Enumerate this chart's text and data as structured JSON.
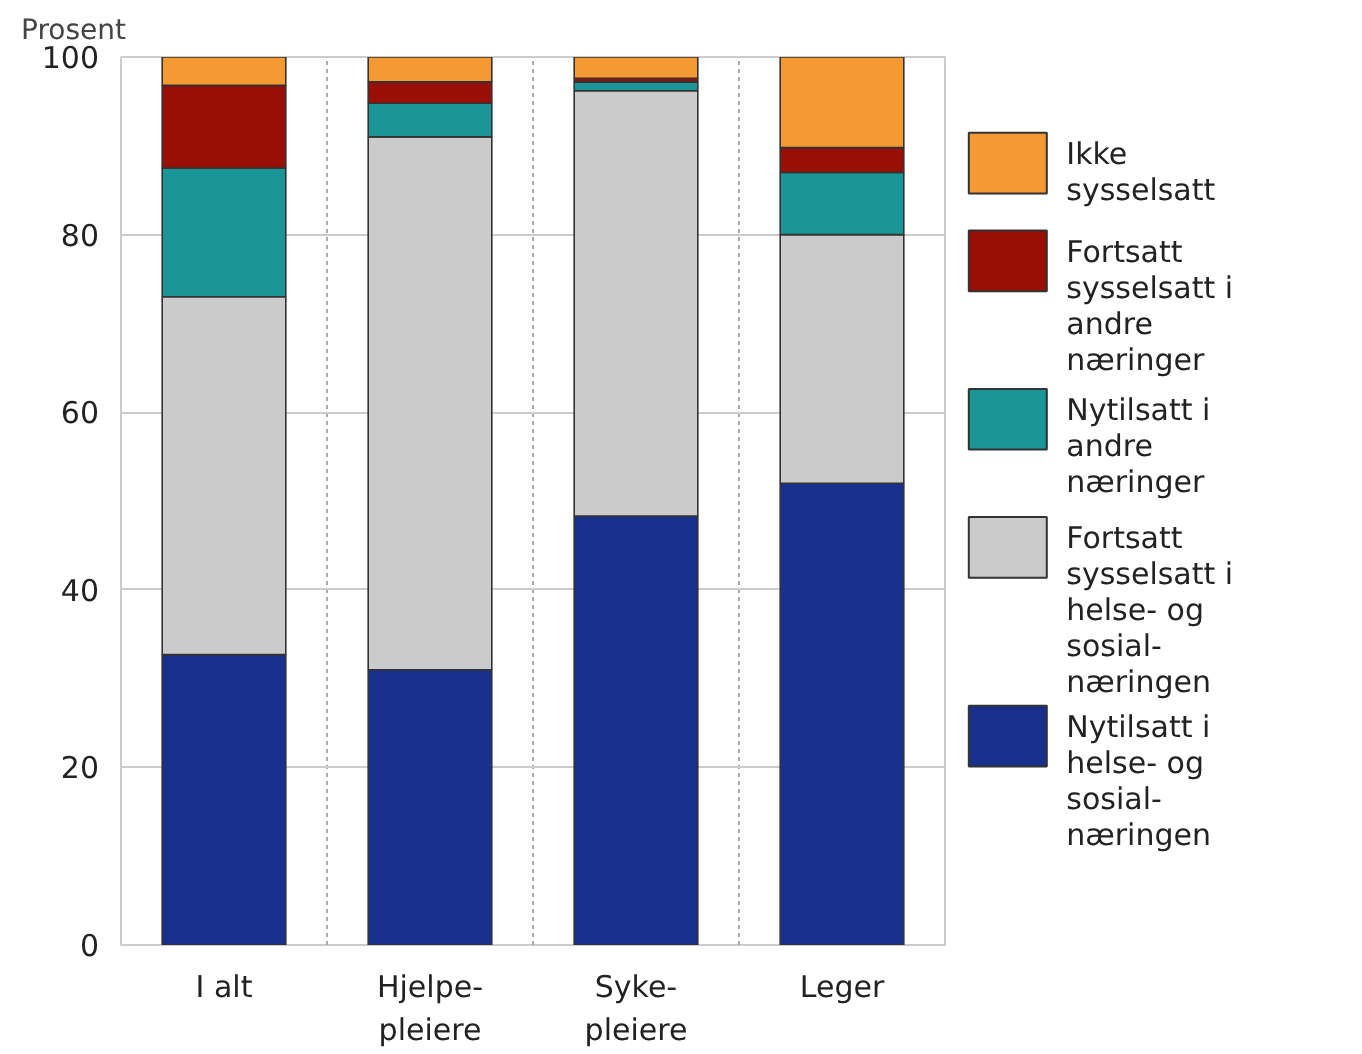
{
  "chart_data": {
    "type": "bar",
    "stacked": true,
    "ylabel": "Prosent",
    "categories": [
      "I alt",
      "Hjelpe-pleiere",
      "Syke-pleiere",
      "Leger"
    ],
    "series": [
      {
        "name": "Nytilsatt i helse- og sosial-næringen",
        "color": "#18308c",
        "values": [
          32.7,
          31.0,
          48.3,
          52.0
        ]
      },
      {
        "name": "Fortsatt sysselsatt i helse- og sosial-næringen",
        "color": "#cbcbcb",
        "values": [
          40.3,
          60.0,
          47.9,
          28.0
        ]
      },
      {
        "name": "Nytilsatt i andre næringer",
        "color": "#1a9696",
        "values": [
          14.5,
          3.8,
          1.0,
          7.0
        ]
      },
      {
        "name": "Fortsatt sysselsatt i andre næringer",
        "color": "#990f05",
        "values": [
          9.3,
          2.4,
          0.4,
          2.8
        ]
      },
      {
        "name": "Ikke sysselsatt",
        "color": "#f59a33",
        "values": [
          3.2,
          2.8,
          2.4,
          10.2
        ]
      }
    ],
    "ylim": [
      0,
      100
    ],
    "yticks": [
      0,
      20,
      40,
      60,
      80,
      100
    ],
    "grid": true,
    "legend": "right"
  }
}
